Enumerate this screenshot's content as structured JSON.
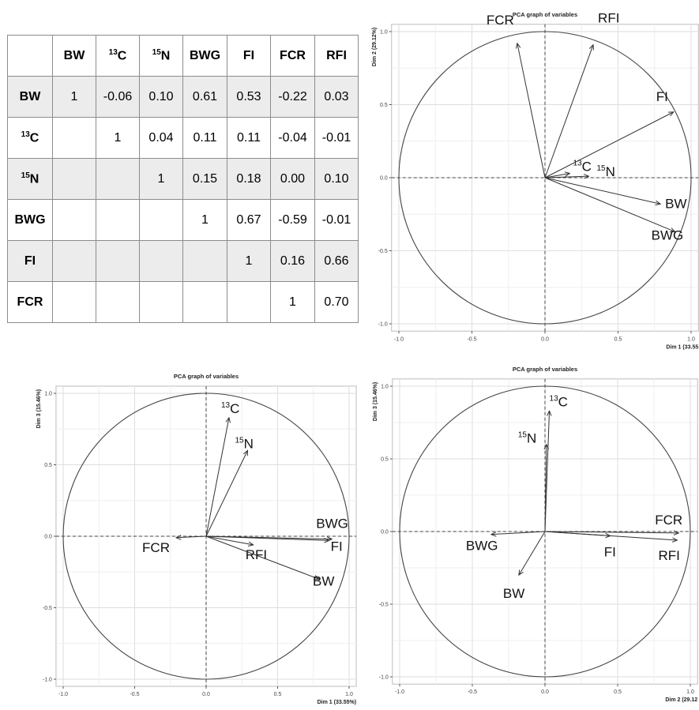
{
  "table": {
    "columns": [
      {
        "iso": "",
        "label": "BW"
      },
      {
        "iso": "13",
        "label": "C"
      },
      {
        "iso": "15",
        "label": "N"
      },
      {
        "iso": "",
        "label": "BWG"
      },
      {
        "iso": "",
        "label": "FI"
      },
      {
        "iso": "",
        "label": "FCR"
      },
      {
        "iso": "",
        "label": "RFI"
      }
    ],
    "rows": [
      {
        "iso": "",
        "label": "BW",
        "values": [
          "1",
          "-0.06",
          "0.10",
          "0.61",
          "0.53",
          "-0.22",
          "0.03"
        ]
      },
      {
        "iso": "13",
        "label": "C",
        "values": [
          "",
          "1",
          "0.04",
          "0.11",
          "0.11",
          "-0.04",
          "-0.01"
        ]
      },
      {
        "iso": "15",
        "label": "N",
        "values": [
          "",
          "",
          "1",
          "0.15",
          "0.18",
          "0.00",
          "0.10"
        ]
      },
      {
        "iso": "",
        "label": "BWG",
        "values": [
          "",
          "",
          "",
          "1",
          "0.67",
          "-0.59",
          "-0.01"
        ]
      },
      {
        "iso": "",
        "label": "FI",
        "values": [
          "",
          "",
          "",
          "",
          "1",
          "0.16",
          "0.66"
        ]
      },
      {
        "iso": "",
        "label": "FCR",
        "values": [
          "",
          "",
          "",
          "",
          "",
          "1",
          "0.70"
        ]
      }
    ]
  },
  "chart_data": [
    {
      "type": "scatter",
      "title": "PCA graph of variables",
      "xlabel": "Dim 1 (33.55",
      "ylabel": "Dim 2 (29.12%)",
      "xlim": [
        -1.05,
        1.05
      ],
      "ylim": [
        -1.05,
        1.05
      ],
      "xticks": [
        "-1.0",
        "-0.5",
        "0.0",
        "0.5",
        "1.0"
      ],
      "yticks": [
        "-1.0",
        "-0.5",
        "0.0",
        "0.5",
        "1.0"
      ],
      "grid": true,
      "vectors": [
        {
          "iso": "",
          "name": "FCR",
          "x": -0.19,
          "y": 0.92
        },
        {
          "iso": "",
          "name": "RFI",
          "x": 0.33,
          "y": 0.91
        },
        {
          "iso": "",
          "name": "FI",
          "x": 0.88,
          "y": 0.45
        },
        {
          "iso": "13",
          "name": "C",
          "x": 0.17,
          "y": 0.03
        },
        {
          "iso": "15",
          "name": "N",
          "x": 0.3,
          "y": 0.01
        },
        {
          "iso": "",
          "name": "BW",
          "x": 0.79,
          "y": -0.18
        },
        {
          "iso": "",
          "name": "BWG",
          "x": 0.89,
          "y": -0.37
        }
      ]
    },
    {
      "type": "scatter",
      "title": "PCA graph of variables",
      "xlabel": "Dim 1 (33.55%)",
      "ylabel": "Dim 3 (15.46%)",
      "xlim": [
        -1.05,
        1.05
      ],
      "ylim": [
        -1.05,
        1.05
      ],
      "xticks": [
        "-1.0",
        "-0.5",
        "0.0",
        "0.5",
        "1.0"
      ],
      "yticks": [
        "-1.0",
        "-0.5",
        "0.0",
        "0.5",
        "1.0"
      ],
      "grid": true,
      "vectors": [
        {
          "iso": "13",
          "name": "C",
          "x": 0.16,
          "y": 0.83
        },
        {
          "iso": "15",
          "name": "N",
          "x": 0.29,
          "y": 0.6
        },
        {
          "iso": "",
          "name": "FCR",
          "x": -0.21,
          "y": -0.01
        },
        {
          "iso": "",
          "name": "BWG",
          "x": 0.88,
          "y": -0.02
        },
        {
          "iso": "",
          "name": "FI",
          "x": 0.86,
          "y": -0.03
        },
        {
          "iso": "",
          "name": "RFI",
          "x": 0.33,
          "y": -0.06
        },
        {
          "iso": "",
          "name": "BW",
          "x": 0.79,
          "y": -0.3
        }
      ]
    },
    {
      "type": "scatter",
      "title": "PCA graph of variables",
      "xlabel": "Dim 2 (29.12",
      "ylabel": "Dim 3 (15.46%)",
      "xlim": [
        -1.05,
        1.05
      ],
      "ylim": [
        -1.05,
        1.05
      ],
      "xticks": [
        "-1.0",
        "-0.5",
        "0.0",
        "0.5",
        "1.0"
      ],
      "yticks": [
        "-1.0",
        "-0.5",
        "0.0",
        "0.5",
        "1.0"
      ],
      "grid": true,
      "vectors": [
        {
          "iso": "13",
          "name": "C",
          "x": 0.03,
          "y": 0.83
        },
        {
          "iso": "15",
          "name": "N",
          "x": 0.01,
          "y": 0.6
        },
        {
          "iso": "",
          "name": "FCR",
          "x": 0.92,
          "y": -0.01
        },
        {
          "iso": "",
          "name": "BWG",
          "x": -0.37,
          "y": -0.02
        },
        {
          "iso": "",
          "name": "FI",
          "x": 0.45,
          "y": -0.03
        },
        {
          "iso": "",
          "name": "RFI",
          "x": 0.91,
          "y": -0.06
        },
        {
          "iso": "",
          "name": "BW",
          "x": -0.18,
          "y": -0.3
        }
      ]
    }
  ]
}
